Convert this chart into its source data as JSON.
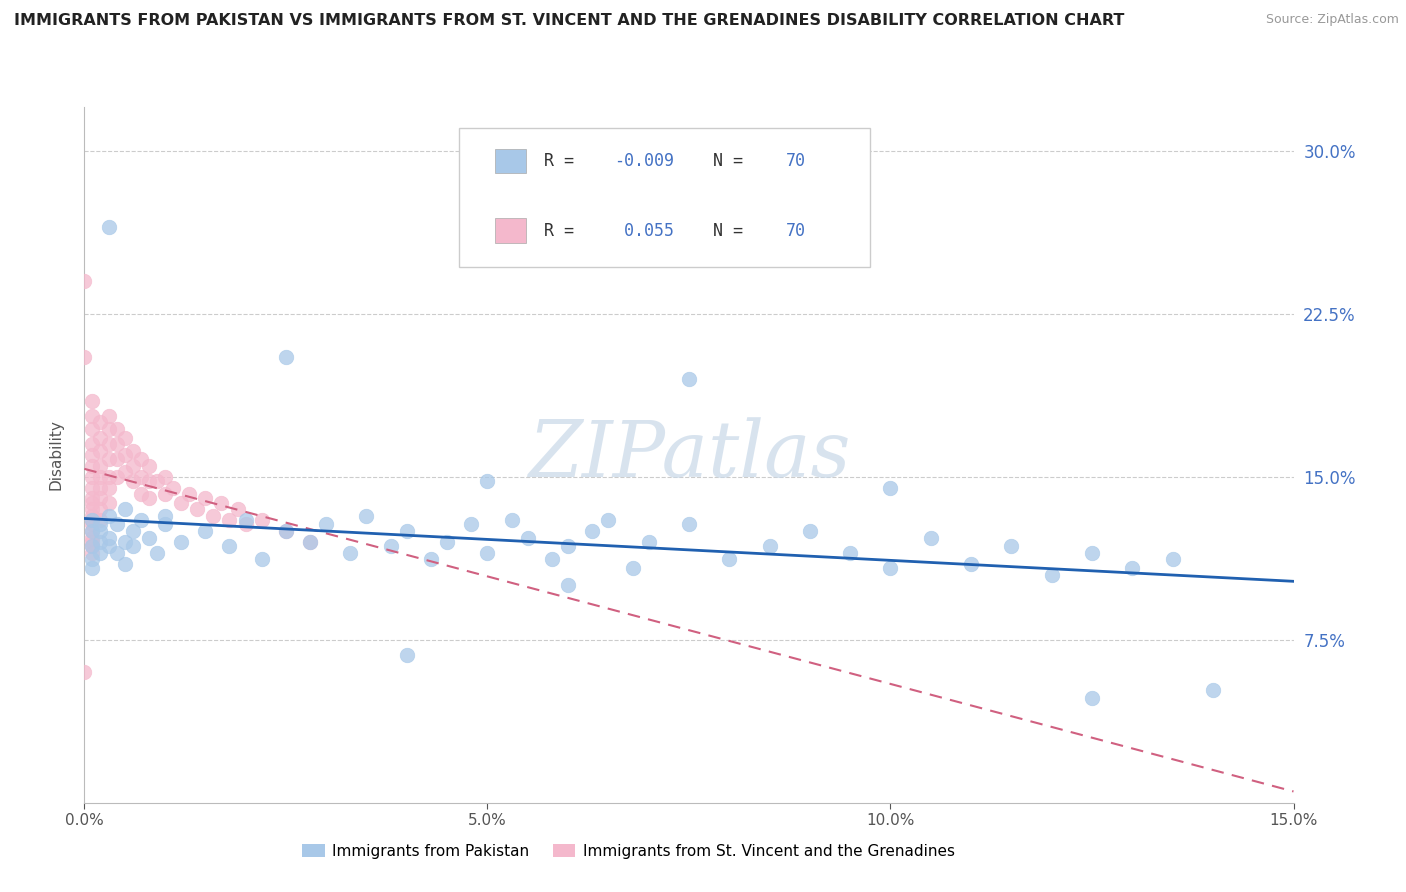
{
  "title": "IMMIGRANTS FROM PAKISTAN VS IMMIGRANTS FROM ST. VINCENT AND THE GRENADINES DISABILITY CORRELATION CHART",
  "source": "Source: ZipAtlas.com",
  "ylabel": "Disability",
  "xlim": [
    0.0,
    0.15
  ],
  "ylim": [
    0.0,
    0.32
  ],
  "xticks": [
    0.0,
    0.05,
    0.1,
    0.15
  ],
  "xtick_labels": [
    "0.0%",
    "5.0%",
    "10.0%",
    "15.0%"
  ],
  "yticks": [
    0.075,
    0.15,
    0.225,
    0.3
  ],
  "ytick_labels": [
    "7.5%",
    "15.0%",
    "22.5%",
    "30.0%"
  ],
  "legend_R_blue": "-0.009",
  "legend_N_blue": "70",
  "legend_R_pink": " 0.055",
  "legend_N_pink": "70",
  "legend_label_blue": "Immigrants from Pakistan",
  "legend_label_pink": "Immigrants from St. Vincent and the Grenadines",
  "color_blue": "#a8c8e8",
  "color_pink": "#f4b8cc",
  "trendline_blue_color": "#2060b0",
  "trendline_pink_color": "#d06080",
  "trendline_pink_style": "--",
  "watermark": "ZIPatlas",
  "watermark_color": "#c8d8e8",
  "blue_x": [
    0.001,
    0.001,
    0.001,
    0.001,
    0.001,
    0.002,
    0.002,
    0.002,
    0.002,
    0.003,
    0.003,
    0.003,
    0.004,
    0.004,
    0.005,
    0.005,
    0.005,
    0.006,
    0.006,
    0.007,
    0.008,
    0.009,
    0.01,
    0.01,
    0.012,
    0.015,
    0.018,
    0.02,
    0.022,
    0.025,
    0.028,
    0.03,
    0.033,
    0.035,
    0.038,
    0.04,
    0.043,
    0.045,
    0.048,
    0.05,
    0.053,
    0.055,
    0.058,
    0.06,
    0.063,
    0.065,
    0.068,
    0.07,
    0.075,
    0.08,
    0.085,
    0.09,
    0.095,
    0.1,
    0.105,
    0.11,
    0.115,
    0.12,
    0.125,
    0.13,
    0.135,
    0.14,
    0.003,
    0.025,
    0.05,
    0.075,
    0.1,
    0.125,
    0.06,
    0.04
  ],
  "blue_y": [
    0.13,
    0.125,
    0.118,
    0.112,
    0.108,
    0.125,
    0.12,
    0.115,
    0.128,
    0.132,
    0.118,
    0.122,
    0.128,
    0.115,
    0.135,
    0.12,
    0.11,
    0.125,
    0.118,
    0.13,
    0.122,
    0.115,
    0.128,
    0.132,
    0.12,
    0.125,
    0.118,
    0.13,
    0.112,
    0.125,
    0.12,
    0.128,
    0.115,
    0.132,
    0.118,
    0.125,
    0.112,
    0.12,
    0.128,
    0.115,
    0.13,
    0.122,
    0.112,
    0.118,
    0.125,
    0.13,
    0.108,
    0.12,
    0.128,
    0.112,
    0.118,
    0.125,
    0.115,
    0.108,
    0.122,
    0.11,
    0.118,
    0.105,
    0.115,
    0.108,
    0.112,
    0.052,
    0.265,
    0.205,
    0.148,
    0.195,
    0.145,
    0.048,
    0.1,
    0.068
  ],
  "pink_x": [
    0.0,
    0.0,
    0.001,
    0.001,
    0.001,
    0.001,
    0.001,
    0.001,
    0.001,
    0.001,
    0.001,
    0.001,
    0.001,
    0.001,
    0.001,
    0.001,
    0.001,
    0.001,
    0.001,
    0.001,
    0.001,
    0.002,
    0.002,
    0.002,
    0.002,
    0.002,
    0.002,
    0.002,
    0.002,
    0.002,
    0.003,
    0.003,
    0.003,
    0.003,
    0.003,
    0.003,
    0.003,
    0.004,
    0.004,
    0.004,
    0.004,
    0.005,
    0.005,
    0.005,
    0.006,
    0.006,
    0.006,
    0.007,
    0.007,
    0.007,
    0.008,
    0.008,
    0.008,
    0.009,
    0.01,
    0.01,
    0.011,
    0.012,
    0.013,
    0.014,
    0.015,
    0.016,
    0.017,
    0.018,
    0.019,
    0.02,
    0.022,
    0.025,
    0.028,
    0.0
  ],
  "pink_y": [
    0.24,
    0.205,
    0.185,
    0.178,
    0.172,
    0.165,
    0.16,
    0.155,
    0.15,
    0.145,
    0.14,
    0.138,
    0.135,
    0.132,
    0.13,
    0.128,
    0.125,
    0.122,
    0.12,
    0.118,
    0.115,
    0.175,
    0.168,
    0.162,
    0.155,
    0.15,
    0.145,
    0.14,
    0.135,
    0.13,
    0.178,
    0.172,
    0.165,
    0.158,
    0.15,
    0.145,
    0.138,
    0.172,
    0.165,
    0.158,
    0.15,
    0.168,
    0.16,
    0.152,
    0.162,
    0.155,
    0.148,
    0.158,
    0.15,
    0.142,
    0.155,
    0.148,
    0.14,
    0.148,
    0.15,
    0.142,
    0.145,
    0.138,
    0.142,
    0.135,
    0.14,
    0.132,
    0.138,
    0.13,
    0.135,
    0.128,
    0.13,
    0.125,
    0.12,
    0.06
  ]
}
